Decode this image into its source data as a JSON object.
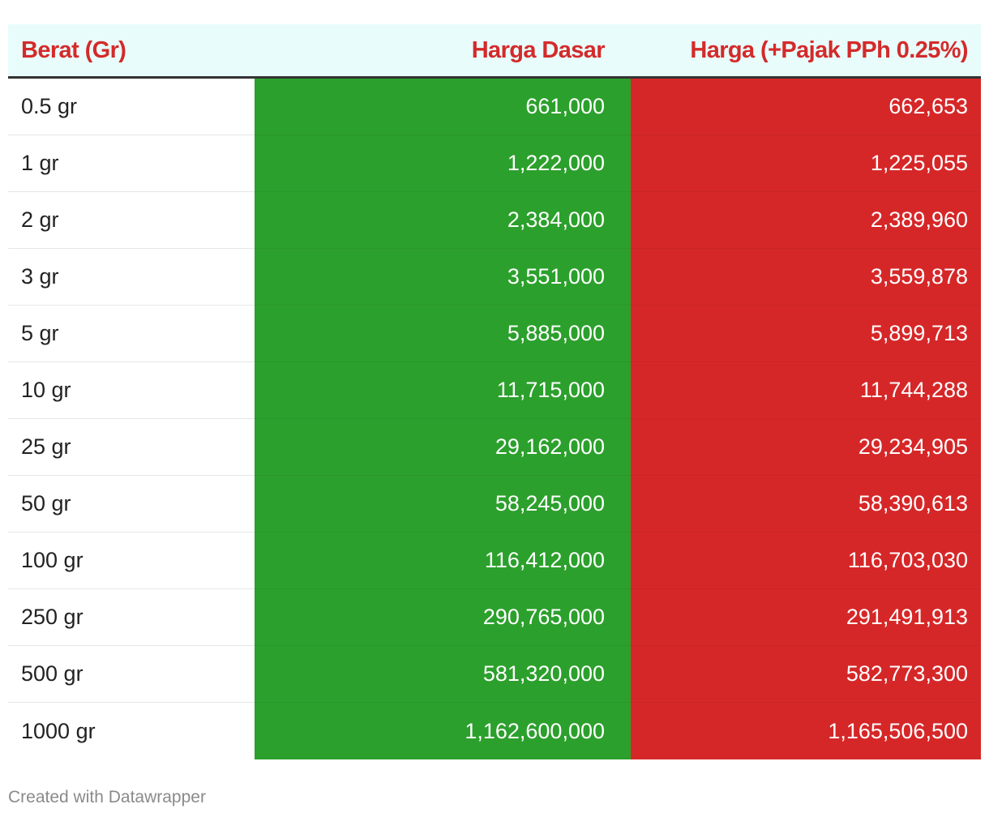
{
  "chart_data": {
    "type": "table",
    "columns": [
      "Berat (Gr)",
      "Harga Dasar",
      "Harga (+Pajak PPh 0.25%)"
    ],
    "rows": [
      [
        "0.5 gr",
        "661,000",
        "662,653"
      ],
      [
        "1 gr",
        "1,222,000",
        "1,225,055"
      ],
      [
        "2 gr",
        "2,384,000",
        "2,389,960"
      ],
      [
        "3 gr",
        "3,551,000",
        "3,559,878"
      ],
      [
        "5 gr",
        "5,885,000",
        "5,899,713"
      ],
      [
        "10 gr",
        "11,715,000",
        "11,744,288"
      ],
      [
        "25 gr",
        "29,162,000",
        "29,234,905"
      ],
      [
        "50 gr",
        "58,245,000",
        "58,390,613"
      ],
      [
        "100 gr",
        "116,412,000",
        "116,703,030"
      ],
      [
        "250 gr",
        "290,765,000",
        "291,491,913"
      ],
      [
        "500 gr",
        "581,320,000",
        "582,773,300"
      ],
      [
        "1000 gr",
        "1,162,600,000",
        "1,165,506,500"
      ]
    ],
    "colors": {
      "header_text": "#d42a2a",
      "header_background": "#e8fcfb",
      "harga_dasar_column": "#2ca02c",
      "harga_pajak_column": "#d62728"
    }
  },
  "footer": {
    "credit": "Created with Datawrapper"
  }
}
